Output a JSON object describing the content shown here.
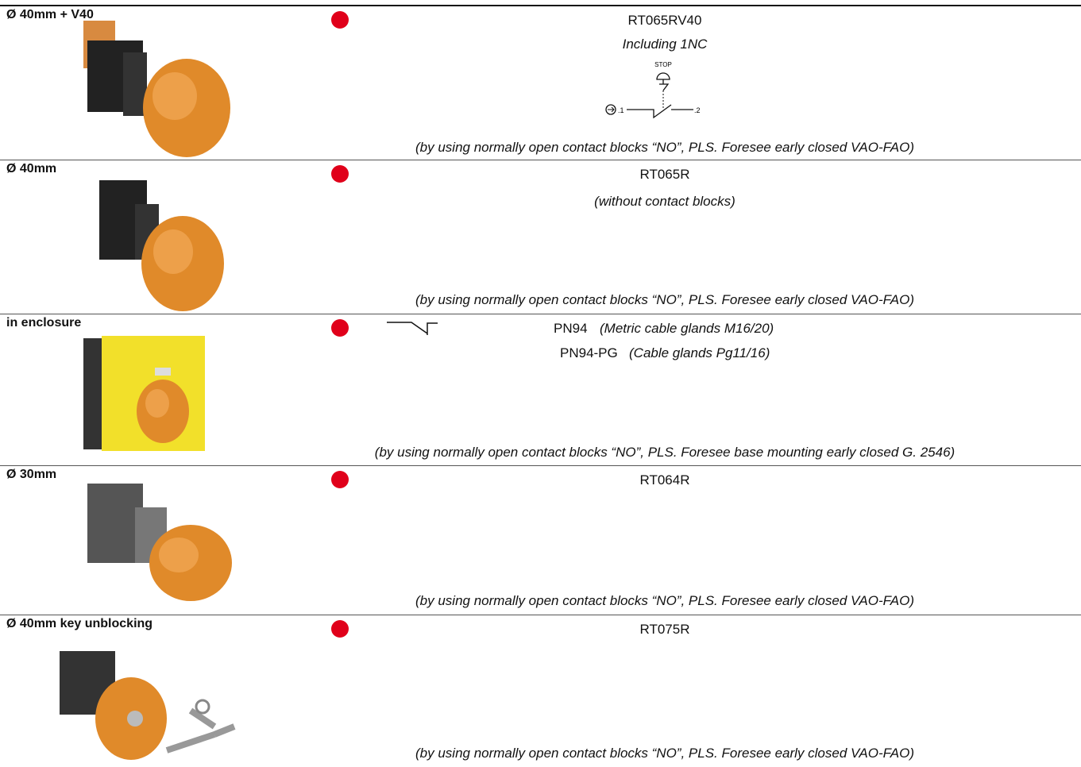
{
  "rows": [
    {
      "title": "Ø 40mm + V40",
      "code": "RT065RV40",
      "subtitle": "Including 1NC",
      "symbol": {
        "label": "STOP",
        "terminal_1": ".1",
        "terminal_2": ".2"
      },
      "note": "(by using normally open contact blocks “NO”, PLS. Foresee early closed VAO-FAO)"
    },
    {
      "title": "Ø 40mm",
      "code": "RT065R",
      "subtitle": "(without contact blocks)",
      "note": "(by using normally open contact blocks “NO”, PLS. Foresee early closed VAO-FAO)"
    },
    {
      "title": "in enclosure",
      "codes": [
        {
          "code": "PN94",
          "description": "(Metric cable glands M16/20)"
        },
        {
          "code": "PN94-PG",
          "description": "(Cable glands Pg11/16)"
        }
      ],
      "note": "(by using normally open contact blocks “NO”, PLS. Foresee base mounting early closed G. 2546)"
    },
    {
      "title": "Ø 30mm",
      "code": "RT064R",
      "note": "(by using normally open contact blocks “NO”, PLS. Foresee early closed VAO-FAO)"
    },
    {
      "title": "Ø 40mm key unblocking",
      "code": "RT075R",
      "note": "(by using normally open contact blocks “NO”, PLS. Foresee early closed VAO-FAO)"
    }
  ]
}
